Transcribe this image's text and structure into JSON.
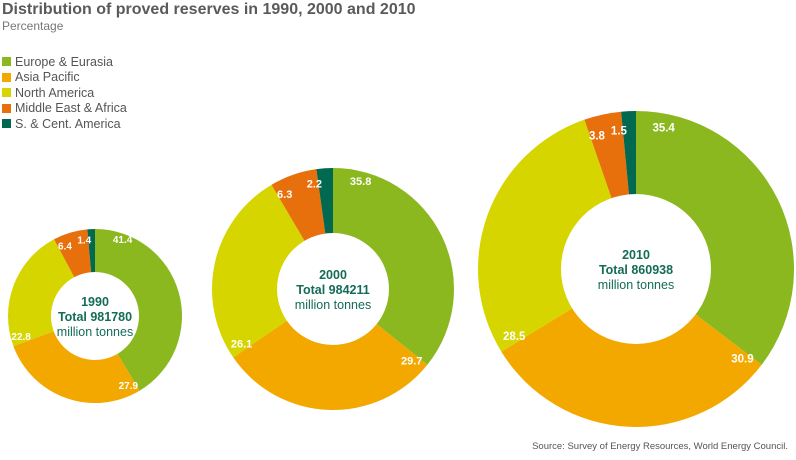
{
  "chart_data": {
    "type": "donut",
    "title": "Distribution of proved reserves in 1990, 2000 and 2010",
    "subtitle": "Percentage",
    "legend_placement": "top-left",
    "series": [
      {
        "name": "Europe & Eurasia",
        "color": "#8ab81e"
      },
      {
        "name": "Asia Pacific",
        "color": "#f3a800"
      },
      {
        "name": "North America",
        "color": "#d6d500"
      },
      {
        "name": "Middle East & Africa",
        "color": "#e8700c"
      },
      {
        "name": "S. & Cent. America",
        "color": "#00694f"
      }
    ],
    "charts": [
      {
        "year": "1990",
        "total": "Total 981780",
        "unit": "million tonnes",
        "values": [
          41.4,
          27.9,
          22.8,
          6.4,
          1.4
        ],
        "labels": [
          "41.4",
          "27.9",
          "22.8",
          "6.4",
          "1.4"
        ]
      },
      {
        "year": "2000",
        "total": "Total 984211",
        "unit": "million tonnes",
        "values": [
          35.8,
          29.7,
          26.1,
          6.3,
          2.2
        ],
        "labels": [
          "35.8",
          "29.7",
          "26.1",
          "6.3",
          "2.2"
        ]
      },
      {
        "year": "2010",
        "total": "Total 860938",
        "unit": "million tonnes",
        "values": [
          35.4,
          30.9,
          28.5,
          3.8,
          1.5
        ],
        "labels": [
          "35.4",
          "30.9",
          "28.5",
          "3.8",
          "1.5"
        ]
      }
    ],
    "source": "Source: Survey of Energy Resources, World Energy Council."
  }
}
